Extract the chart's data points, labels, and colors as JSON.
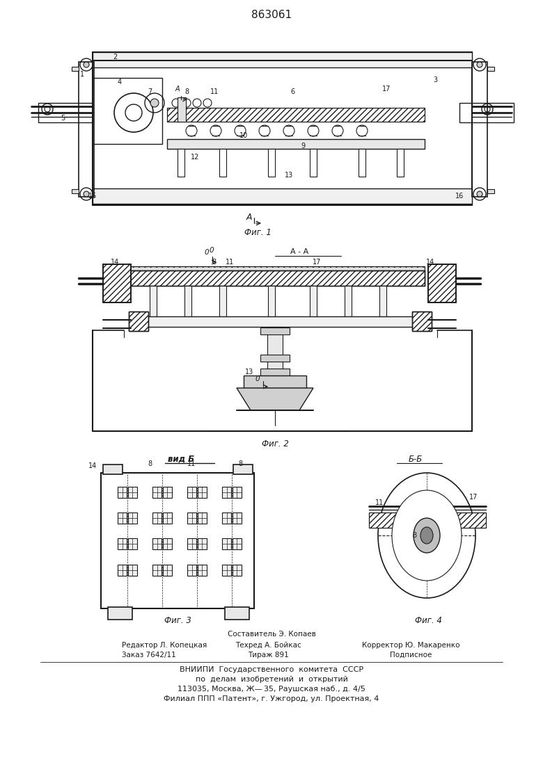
{
  "patent_number": "863061",
  "background_color": "#ffffff",
  "line_color": "#1a1a1a",
  "fig1_label": "Фиг. 1",
  "fig2_label": "Фиг. 2",
  "fig3_label": "Фиг. 3",
  "fig4_label": "Фиг. 4",
  "vid_b_label": "вид Б",
  "aa_label": "A - A",
  "bb_label": "Б-Б",
  "footer_sestavitel": "Составитель Э. Копаев",
  "footer_redaktor": "Редактор Л. Копецкая",
  "footer_tehred": "Техред А. Бойкас",
  "footer_korrektor": "Корректор Ю. Макаренко",
  "footer_zakaz": "Заказ 7642/11",
  "footer_tirazh": "Тираж 891",
  "footer_podpisnoe": "Подписное",
  "footer_vniipи": "ВНИИПИ  Государственного  комитета  СССР",
  "footer_po_delam": "по  делам  изобретений  и  открытий",
  "footer_addr1": "113035, Москва, Ж— 35, Раушская наб., д. 4/5",
  "footer_addr2": "Филиал ППП «Патент», г. Ужгород, ул. Проектная, 4"
}
